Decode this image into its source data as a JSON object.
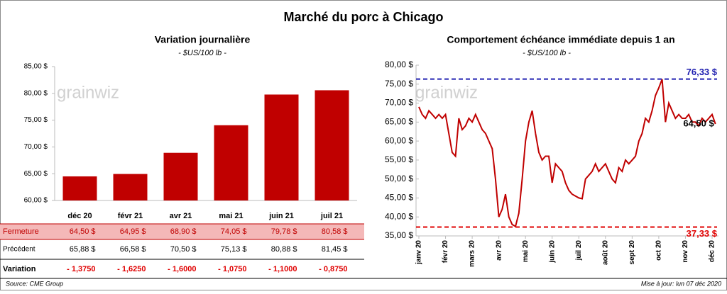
{
  "title": "Marché du porc à Chicago",
  "logo": "grainwiz",
  "source": "Source: CME Group",
  "updated": "Mise à jour: lun 07 déc 2020",
  "table": {
    "row_labels": [
      "Fermeture",
      "Précédent",
      "Variation"
    ],
    "previous": [
      "65,88 $",
      "66,58 $",
      "70,50 $",
      "75,13 $",
      "80,88 $",
      "81,45 $"
    ],
    "variation": [
      "- 1,3750",
      "- 1,6250",
      "- 1,6000",
      "- 1,0750",
      "- 1,1000",
      "- 0,8750"
    ]
  },
  "chart_data": [
    {
      "type": "bar",
      "title": "Variation journalière",
      "subtitle": "- $US/100 lb -",
      "categories": [
        "déc 20",
        "févr 21",
        "avr 21",
        "mai 21",
        "juin 21",
        "juil 21"
      ],
      "values": [
        64.5,
        64.95,
        68.9,
        74.05,
        79.78,
        80.58
      ],
      "value_labels": [
        "64,50 $",
        "64,95 $",
        "68,90 $",
        "74,05 $",
        "79,78 $",
        "80,58 $"
      ],
      "color": "#c00000",
      "ylim": [
        60,
        85
      ],
      "yticks": [
        {
          "value": 60,
          "label": "60,00 $"
        },
        {
          "value": 65,
          "label": "65,00 $"
        },
        {
          "value": 70,
          "label": "70,00 $"
        },
        {
          "value": 75,
          "label": "75,00 $"
        },
        {
          "value": 80,
          "label": "80,00 $"
        },
        {
          "value": 85,
          "label": "85,00 $"
        }
      ],
      "grid": false
    },
    {
      "type": "line",
      "title": "Comportement  échéance immédiate depuis 1 an",
      "subtitle": "- $US/100 lb -",
      "categories": [
        "janv 20",
        null,
        null,
        null,
        null,
        null,
        null,
        null,
        "févr 20",
        null,
        null,
        null,
        null,
        null,
        null,
        null,
        "mars 20",
        null,
        null,
        null,
        null,
        null,
        null,
        null,
        "avr 20",
        null,
        null,
        null,
        null,
        null,
        null,
        null,
        "mai 20",
        null,
        null,
        null,
        null,
        null,
        null,
        null,
        "juin 20",
        null,
        null,
        null,
        null,
        null,
        null,
        null,
        "juil 20",
        null,
        null,
        null,
        null,
        null,
        null,
        null,
        "août 20",
        null,
        null,
        null,
        null,
        null,
        null,
        null,
        "sept 20",
        null,
        null,
        null,
        null,
        null,
        null,
        null,
        "oct 20",
        null,
        null,
        null,
        null,
        null,
        null,
        null,
        "nov 20",
        null,
        null,
        null,
        null,
        null,
        null,
        null,
        "déc 20",
        null
      ],
      "values": [
        69,
        67,
        66,
        68,
        67,
        66,
        67,
        66,
        67,
        62,
        57,
        56,
        66,
        63,
        64,
        66,
        65,
        67,
        65,
        63,
        62,
        60,
        58,
        50,
        40,
        42,
        46,
        40,
        38,
        37.5,
        41,
        50,
        60,
        65,
        68,
        62,
        57,
        55,
        56,
        56,
        49,
        54,
        53,
        52,
        49,
        47,
        46,
        45.5,
        45,
        44.8,
        50,
        51,
        52,
        54,
        52,
        53,
        54,
        52,
        50,
        49,
        53,
        52,
        55,
        54,
        55,
        56,
        60,
        62,
        66,
        65,
        68,
        72,
        74,
        76.3,
        65,
        70,
        68,
        66,
        67,
        66,
        66,
        67,
        65,
        65,
        64,
        66,
        65,
        66,
        67,
        64.5
      ],
      "color": "#c00000",
      "ylim": [
        35,
        80
      ],
      "yticks": [
        {
          "value": 35,
          "label": "35,00 $"
        },
        {
          "value": 40,
          "label": "40,00 $"
        },
        {
          "value": 45,
          "label": "45,00 $"
        },
        {
          "value": 50,
          "label": "50,00 $"
        },
        {
          "value": 55,
          "label": "55,00 $"
        },
        {
          "value": 60,
          "label": "60,00 $"
        },
        {
          "value": 65,
          "label": "65,00 $"
        },
        {
          "value": 70,
          "label": "70,00 $"
        },
        {
          "value": 75,
          "label": "75,00 $"
        },
        {
          "value": 80,
          "label": "80,00 $"
        }
      ],
      "annotations": [
        {
          "label": "76,33 $",
          "value": 76.33,
          "color": "#2020b0",
          "dashed": true
        },
        {
          "label": "37,33 $",
          "value": 37.33,
          "color": "#e00000",
          "dashed": true
        },
        {
          "label": "64,50 $",
          "value": 64.5,
          "color": "#000000",
          "dashed": false
        }
      ],
      "grid": false
    }
  ]
}
